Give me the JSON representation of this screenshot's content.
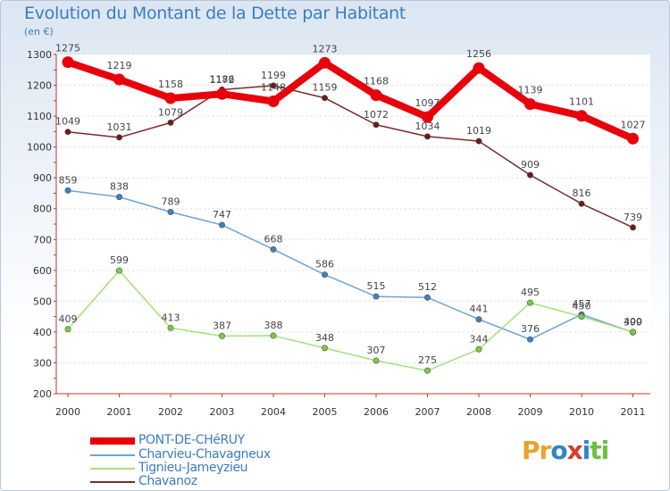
{
  "title": "Evolution du Montant de la Dette par Habitant",
  "unit_label": "(en €)",
  "brand": [
    "P",
    "r",
    "o",
    "x",
    "i",
    "t",
    "i"
  ],
  "brand_colors": [
    "#e9a329",
    "#e9a329",
    "#2e86c8",
    "#d63b2a",
    "#2e86c8",
    "#6cbf3f",
    "#6cbf3f"
  ],
  "chart_data": {
    "type": "line",
    "title": "Evolution du Montant de la Dette par Habitant",
    "ylabel": "(en €)",
    "xlabel": "",
    "ylim": [
      200,
      1300
    ],
    "yticks": [
      "200",
      "300",
      "400",
      "500",
      "600",
      "700",
      "800",
      "900",
      "1000",
      "1100",
      "1200",
      "1300"
    ],
    "categories": [
      "2000",
      "2001",
      "2002",
      "2003",
      "2004",
      "2005",
      "2006",
      "2007",
      "2008",
      "2009",
      "2010",
      "2011"
    ],
    "series": [
      {
        "name": "PONT-DE-CHéRUY",
        "color": "#e8000b",
        "width": 8,
        "marker": "#e8000b",
        "values": [
          1275,
          1219,
          1158,
          1172,
          1148,
          1273,
          1168,
          1097,
          1256,
          1139,
          1101,
          1027
        ],
        "labels": [
          "1275",
          "1219",
          "1158",
          "1172",
          "1148",
          "1273",
          "1168",
          "1097",
          "1256",
          "1139",
          "1101",
          "1027"
        ]
      },
      {
        "name": "Charvieu-Chavagneux",
        "color": "#6fa4d6",
        "width": 1.5,
        "marker": "#3b82c4",
        "values": [
          859,
          838,
          789,
          747,
          668,
          586,
          515,
          512,
          441,
          376,
          457,
          399
        ],
        "labels": [
          "859",
          "838",
          "789",
          "747",
          "668",
          "586",
          "515",
          "512",
          "441",
          "376",
          "457",
          "399"
        ]
      },
      {
        "name": "Tignieu-Jameyzieu",
        "color": "#a6e07a",
        "width": 1.5,
        "marker": "#7ccc3e",
        "values": [
          409,
          599,
          413,
          387,
          388,
          348,
          307,
          275,
          344,
          495,
          450,
          400
        ],
        "labels": [
          "409",
          "599",
          "413",
          "387",
          "388",
          "348",
          "307",
          "275",
          "344",
          "495",
          "450",
          "400"
        ]
      },
      {
        "name": "Chavanoz",
        "color": "#7a2a2a",
        "width": 1.5,
        "marker": "#6b1a1a",
        "values": [
          1049,
          1031,
          1079,
          1186,
          1199,
          1159,
          1072,
          1034,
          1019,
          909,
          816,
          739
        ],
        "labels": [
          "1049",
          "1031",
          "1079",
          "1186",
          "1199",
          "1159",
          "1072",
          "1034",
          "1019",
          "909",
          "816",
          "739"
        ]
      }
    ],
    "legend": [
      "PONT-DE-CHéRUY",
      "Charvieu-Chavagneux",
      "Tignieu-Jameyzieu",
      "Chavanoz"
    ],
    "legend_position": "bottom-left"
  }
}
